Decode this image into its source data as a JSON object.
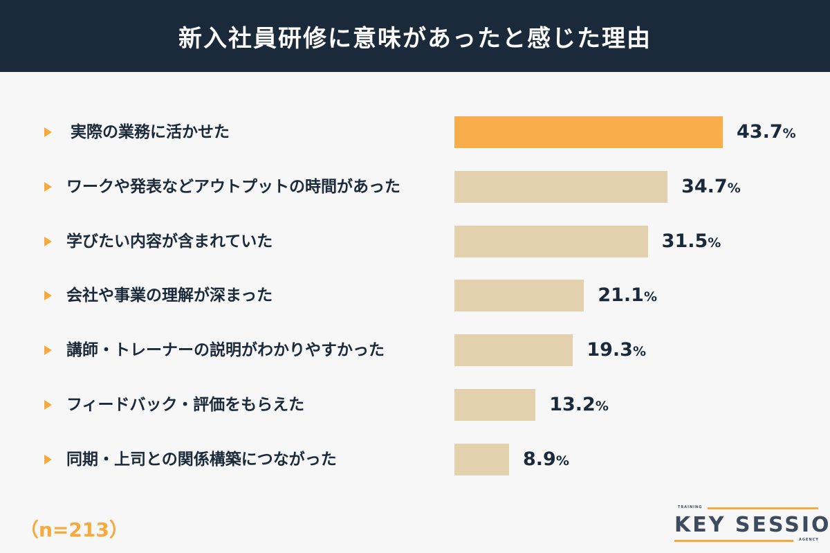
{
  "title": "新入社員研修に意味があったと感じた理由",
  "chart_data": {
    "type": "bar",
    "orientation": "horizontal",
    "title": "新入社員研修に意味があったと感じた理由",
    "categories": [
      "実際の業務に活かせた",
      "ワークや発表などアウトプットの時間があった",
      "学びたい内容が含まれていた",
      "会社や事業の理解が深まった",
      "講師・トレーナーの説明がわかりやすかった",
      "フィードバック・評価をもらえた",
      "同期・上司との関係構築につながった"
    ],
    "values": [
      43.7,
      34.7,
      31.5,
      21.1,
      19.3,
      13.2,
      8.9
    ],
    "value_labels": [
      "43.7",
      "34.7",
      "31.5",
      "21.1",
      "19.3",
      "13.2",
      "8.9"
    ],
    "unit": "%",
    "highlight_color": "#f9ae4b",
    "bar_color": "#e3d0ad",
    "xlim": [
      0,
      50
    ]
  },
  "sample": "（n=213）",
  "logo": {
    "top": "TRAINING",
    "main": "KEY SESSION",
    "bottom": "AGENCY"
  }
}
